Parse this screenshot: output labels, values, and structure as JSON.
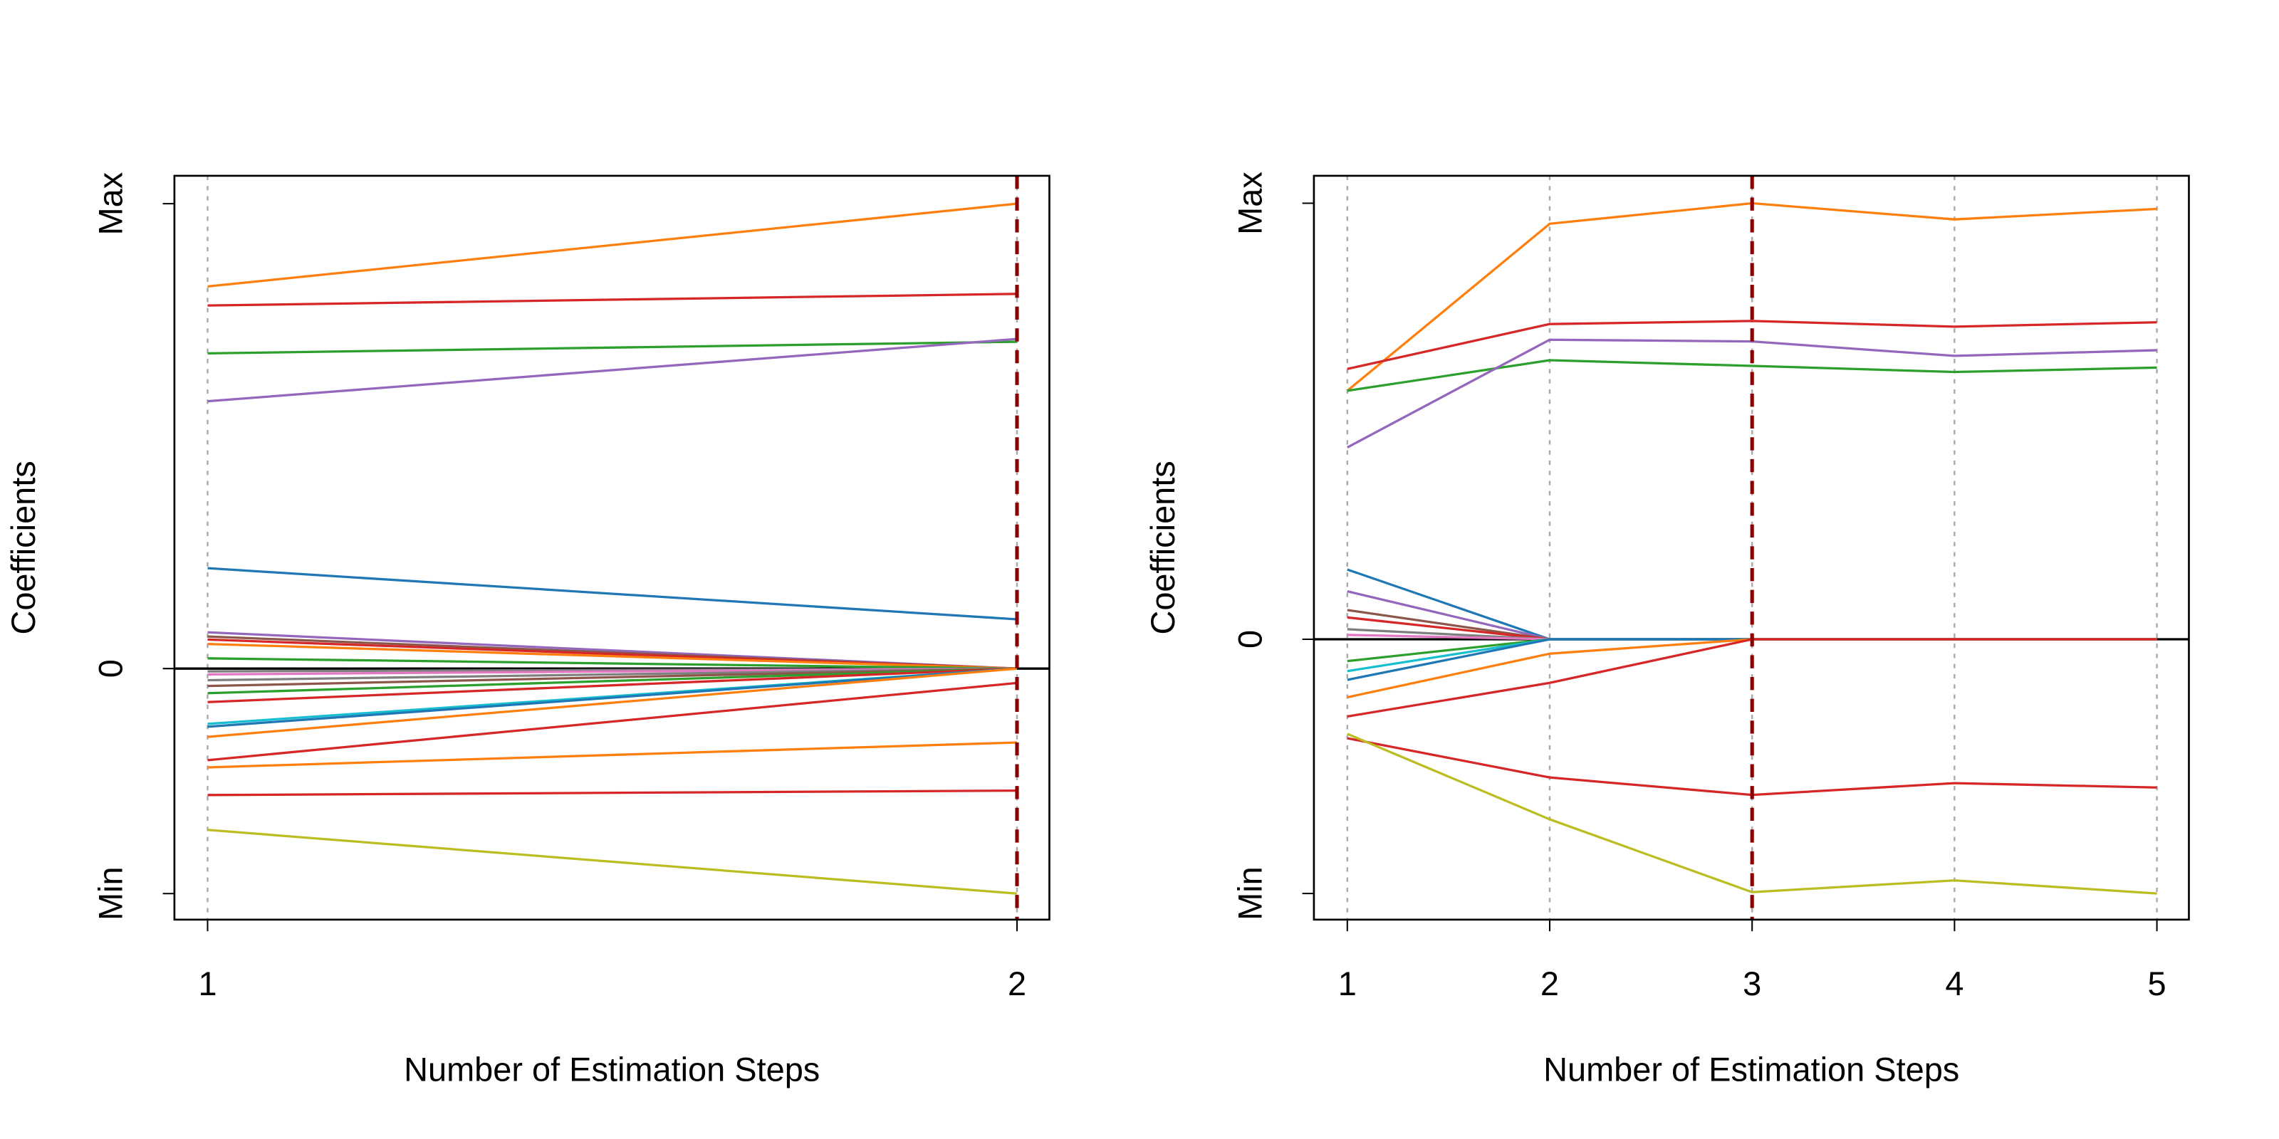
{
  "chart_data": [
    {
      "type": "line",
      "x_label": "Number of Estimation Steps",
      "y_label": "Coefficients",
      "x": [
        1,
        2
      ],
      "xlim": [
        0.959,
        2.04
      ],
      "xticks": [
        1,
        2
      ],
      "ylim": [
        -0.54,
        1.06
      ],
      "yticks": [
        {
          "value": -0.484,
          "label": "Min"
        },
        0,
        {
          "value": 1,
          "label": "Max"
        }
      ],
      "grid": true,
      "selected_step": 2,
      "series": [
        {
          "color": "#ff7f0e",
          "values": [
            0.822,
            1.0
          ]
        },
        {
          "color": "#d62728",
          "values": [
            0.781,
            0.806
          ]
        },
        {
          "color": "#2ca02c",
          "values": [
            0.678,
            0.703
          ]
        },
        {
          "color": "#9467bd",
          "values": [
            0.575,
            0.709
          ]
        },
        {
          "color": "#1f77b4",
          "values": [
            0.216,
            0.106
          ]
        },
        {
          "color": "#9467bd",
          "values": [
            0.078,
            0
          ]
        },
        {
          "color": "#8c564b",
          "values": [
            0.069,
            0
          ]
        },
        {
          "color": "#d62728",
          "values": [
            0.0625,
            0
          ]
        },
        {
          "color": "#ff7f0e",
          "values": [
            0.053,
            0
          ]
        },
        {
          "color": "#2ca02c",
          "values": [
            0.022,
            0
          ]
        },
        {
          "color": "#7f7f7f",
          "values": [
            -0.006,
            0
          ]
        },
        {
          "color": "#e377c2",
          "values": [
            -0.0125,
            0
          ]
        },
        {
          "color": "#7f7f7f",
          "values": [
            -0.025,
            0
          ]
        },
        {
          "color": "#8c564b",
          "values": [
            -0.0375,
            0
          ]
        },
        {
          "color": "#2ca02c",
          "values": [
            -0.053,
            0
          ]
        },
        {
          "color": "#d62728",
          "values": [
            -0.072,
            0
          ]
        },
        {
          "color": "#17becf",
          "values": [
            -0.119,
            0
          ]
        },
        {
          "color": "#1f77b4",
          "values": [
            -0.125,
            0
          ]
        },
        {
          "color": "#ff7f0e",
          "values": [
            -0.147,
            0
          ]
        },
        {
          "color": "#d62728",
          "values": [
            -0.197,
            -0.031
          ]
        },
        {
          "color": "#ff7f0e",
          "values": [
            -0.2125,
            -0.159
          ]
        },
        {
          "color": "#d62728",
          "values": [
            -0.272,
            -0.2625
          ]
        },
        {
          "color": "#bcbd22",
          "values": [
            -0.347,
            -0.484
          ]
        }
      ]
    },
    {
      "type": "line",
      "x_label": "Number of Estimation Steps",
      "y_label": "Coefficients",
      "x": [
        1,
        2,
        3,
        4,
        5
      ],
      "xlim": [
        0.835,
        5.158
      ],
      "xticks": [
        1,
        2,
        3,
        4,
        5
      ],
      "ylim": [
        -0.643,
        1.063
      ],
      "yticks": [
        {
          "value": -0.583,
          "label": "Min"
        },
        0,
        {
          "value": 1,
          "label": "Max"
        }
      ],
      "grid": true,
      "selected_step": 3,
      "series": [
        {
          "color": "#ff7f0e",
          "values": [
            0.57,
            0.953,
            1.0,
            0.963,
            0.987
          ]
        },
        {
          "color": "#d62728",
          "values": [
            0.62,
            0.723,
            0.73,
            0.717,
            0.727
          ]
        },
        {
          "color": "#2ca02c",
          "values": [
            0.57,
            0.64,
            0.627,
            0.613,
            0.623
          ]
        },
        {
          "color": "#9467bd",
          "values": [
            0.44,
            0.687,
            0.683,
            0.65,
            0.663
          ]
        },
        {
          "color": "#1f77b4",
          "values": [
            0.16,
            0,
            0,
            0,
            0
          ]
        },
        {
          "color": "#9467bd",
          "values": [
            0.11,
            0,
            0,
            0,
            0
          ]
        },
        {
          "color": "#8c564b",
          "values": [
            0.067,
            0,
            0,
            0,
            0
          ]
        },
        {
          "color": "#d62728",
          "values": [
            0.05,
            0,
            0,
            0,
            0
          ]
        },
        {
          "color": "#7f7f7f",
          "values": [
            0.023,
            0,
            0,
            0,
            0
          ]
        },
        {
          "color": "#e377c2",
          "values": [
            0.01,
            0,
            0,
            0,
            0
          ]
        },
        {
          "color": "#2ca02c",
          "values": [
            -0.05,
            0,
            0,
            0,
            0
          ]
        },
        {
          "color": "#17becf",
          "values": [
            -0.073,
            0,
            0,
            0,
            0
          ]
        },
        {
          "color": "#1f77b4",
          "values": [
            -0.093,
            0,
            0,
            0,
            0
          ]
        },
        {
          "color": "#ff7f0e",
          "values": [
            -0.133,
            -0.033,
            0,
            0,
            0
          ]
        },
        {
          "color": "#d62728",
          "values": [
            -0.177,
            -0.1,
            0,
            0,
            0
          ]
        },
        {
          "color": "#d62728",
          "values": [
            -0.227,
            -0.317,
            -0.357,
            -0.33,
            -0.34
          ]
        },
        {
          "color": "#bcbd22",
          "values": [
            -0.217,
            -0.413,
            -0.58,
            -0.553,
            -0.583
          ]
        }
      ]
    }
  ]
}
